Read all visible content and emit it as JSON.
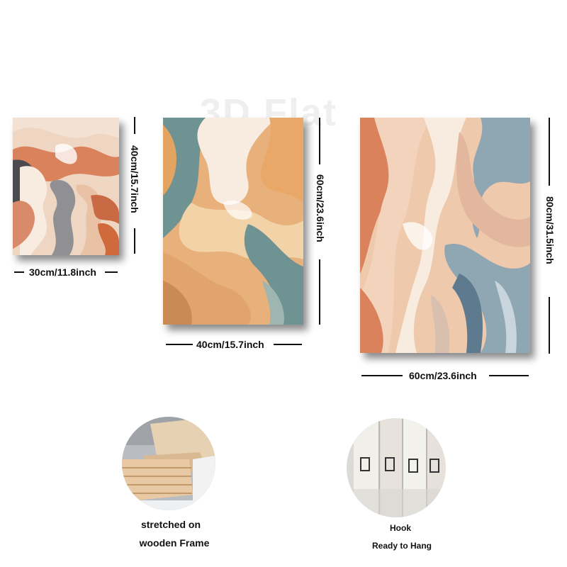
{
  "watermark": "3D Flat",
  "paintings": {
    "small": {
      "width_label": "30cm/11.8inch",
      "height_label": "40cm/15.7inch"
    },
    "medium": {
      "width_label": "40cm/15.7inch",
      "height_label": "60cm/23.6inch"
    },
    "large": {
      "width_label": "60cm/23.6inch",
      "height_label": "80cm/31.5inch"
    }
  },
  "features": {
    "frame": {
      "line1": "stretched on",
      "line2": "wooden Frame"
    },
    "hook": {
      "line1": "Hook",
      "line2": "Ready to Hang"
    }
  },
  "colors": {
    "peach": "#efc9ac",
    "terracotta": "#d9825c",
    "slate_blue": "#8fa6b3",
    "charcoal": "#4b4b4f",
    "cream": "#f7ecdf",
    "mustard": "#e3a461",
    "teal": "#6f9393"
  }
}
